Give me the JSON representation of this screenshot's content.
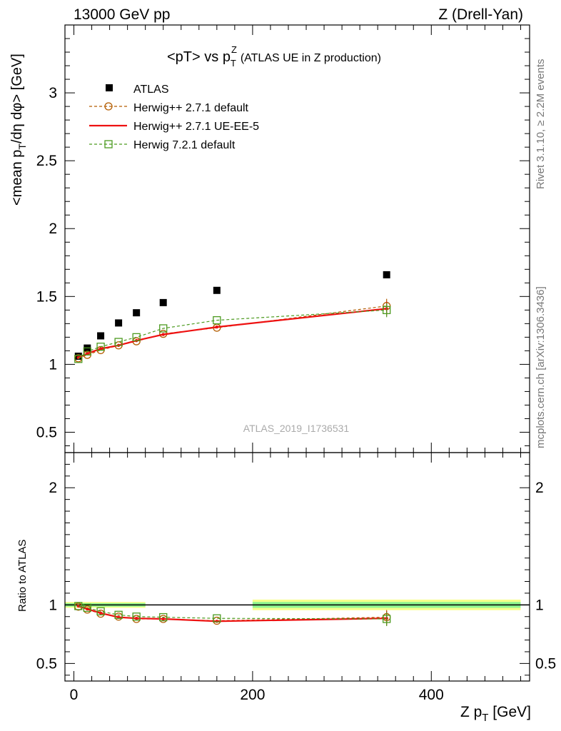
{
  "header": {
    "left": "13000 GeV pp",
    "right": "Z (Drell-Yan)"
  },
  "title": {
    "main": "<pT> vs p",
    "sup": "Z",
    "sub": "T",
    "suffix": "(ATLAS UE in Z production)"
  },
  "side_labels": {
    "rivet": "Rivet 3.1.10, ≥ 2.2M events",
    "mcplots": "mcplots.cern.ch [arXiv:1306.3436]"
  },
  "watermark": "ATLAS_2019_I1736531",
  "axes": {
    "ylabel_main": {
      "a": "<mean p",
      "sub": "T",
      "b": "/dη dφ> [GeV]"
    },
    "ylabel_ratio": "Ratio to ATLAS",
    "xlabel": {
      "a": "Z p",
      "sub": "T",
      "b": " [GeV]"
    }
  },
  "colors": {
    "atlas": "#000000",
    "herwigpp_default": "#b35c00",
    "herwigpp_ueee5": "#ee1111",
    "herwig7": "#4c9a1f",
    "band_green": "#8ef58e",
    "band_yellow": "#f7ff8a"
  },
  "chart_data": {
    "type": "scatter",
    "xlim": [
      -10,
      510
    ],
    "ylim_main": [
      0.35,
      3.5
    ],
    "ylim_ratio": [
      0.35,
      2.3
    ],
    "x_ticks": [
      0,
      200,
      400
    ],
    "y_ticks_main": [
      0.5,
      1,
      1.5,
      2,
      2.5,
      3
    ],
    "y_ticks_ratio": [
      0.5,
      1,
      2
    ],
    "x_tick_labels": [
      "0",
      "200",
      "400"
    ],
    "y_tick_labels_main": [
      "0.5",
      "1",
      "1.5",
      "2",
      "2.5",
      "3"
    ],
    "y_tick_labels_ratio": [
      "0.5",
      "1",
      "2"
    ],
    "x": [
      5,
      15,
      30,
      50,
      70,
      100,
      160,
      350
    ],
    "series": [
      {
        "name": "ATLAS",
        "style": "data",
        "values": [
          1.06,
          1.12,
          1.21,
          1.305,
          1.38,
          1.455,
          1.545,
          1.66
        ]
      },
      {
        "name": "Herwig++ 2.7.1 default",
        "style": "circle-dashed",
        "values": [
          1.045,
          1.07,
          1.105,
          1.14,
          1.17,
          1.225,
          1.27,
          1.43
        ],
        "ratio": [
          0.985,
          0.96,
          0.925,
          0.9,
          0.88,
          0.88,
          0.865,
          0.895
        ]
      },
      {
        "name": "Herwig++ 2.7.1 UE-EE-5",
        "style": "solid",
        "values": [
          1.05,
          1.08,
          1.115,
          1.14,
          1.175,
          1.22,
          1.275,
          1.41
        ],
        "ratio": [
          0.99,
          0.965,
          0.93,
          0.895,
          0.885,
          0.88,
          0.86,
          0.885
        ]
      },
      {
        "name": "Herwig 7.2.1 default",
        "style": "square-dashed",
        "values": [
          1.04,
          1.095,
          1.13,
          1.165,
          1.2,
          1.265,
          1.325,
          1.4
        ],
        "ratio": [
          0.99,
          0.975,
          0.945,
          0.915,
          0.9,
          0.895,
          0.885,
          0.88
        ]
      }
    ]
  }
}
